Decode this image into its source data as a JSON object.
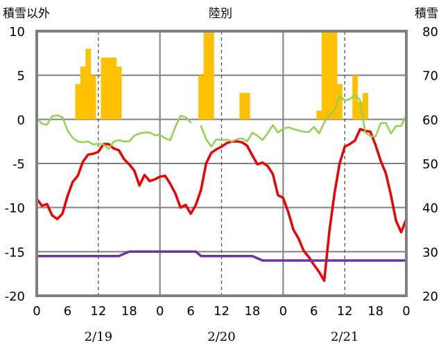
{
  "chart_data": {
    "type": "bar+line",
    "title": "陸別",
    "left_axis_label": "積雪以外",
    "right_axis_label": "積雪",
    "left_ylim": [
      -20,
      10
    ],
    "left_yticks": [
      "10",
      "5",
      "0",
      "-5",
      "-10",
      "-15",
      "-20"
    ],
    "right_ylim": [
      20,
      80
    ],
    "right_yticks": [
      "80",
      "70",
      "60",
      "50",
      "40",
      "30",
      "20"
    ],
    "x_tick_labels": [
      "0",
      "6",
      "12",
      "18",
      "0",
      "6",
      "12",
      "18",
      "0",
      "6",
      "12",
      "18",
      "0"
    ],
    "x_hours_total": 72,
    "dates": [
      "2/19",
      "2/20",
      "2/21"
    ],
    "grid": "dashed vertical at 12h, solid vertical at day boundaries, solid horizontal at 0/5/-5/-10/-15",
    "colors": {
      "bars": "#ffc000",
      "red": "#ee0000",
      "green": "#92d050",
      "purple": "#7030a0",
      "frame": "#808080"
    },
    "series": [
      {
        "kind": "bar",
        "values": [
          {
            "x": 8,
            "y": 4
          },
          {
            "x": 9,
            "y": 6
          },
          {
            "x": 10,
            "y": 8
          },
          {
            "x": 11,
            "y": 5
          },
          {
            "x": 13,
            "y": 7
          },
          {
            "x": 14,
            "y": 7
          },
          {
            "x": 15,
            "y": 7
          },
          {
            "x": 16,
            "y": 6
          },
          {
            "x": 32,
            "y": 5
          },
          {
            "x": 33,
            "y": 10
          },
          {
            "x": 34,
            "y": 10
          },
          {
            "x": 40,
            "y": 3
          },
          {
            "x": 41,
            "y": 3
          },
          {
            "x": 55,
            "y": 1
          },
          {
            "x": 56,
            "y": 10
          },
          {
            "x": 57,
            "y": 10
          },
          {
            "x": 58,
            "y": 10
          },
          {
            "x": 59,
            "y": 4
          },
          {
            "x": 62,
            "y": 5
          },
          {
            "x": 63,
            "y": 2
          },
          {
            "x": 64,
            "y": 3
          }
        ]
      },
      {
        "kind": "line",
        "axis": "left",
        "values": [
          [
            0,
            -9
          ],
          [
            1,
            -9.8
          ],
          [
            2,
            -9.6
          ],
          [
            3,
            -10.9
          ],
          [
            4,
            -11.3
          ],
          [
            5,
            -10.7
          ],
          [
            6,
            -8.7
          ],
          [
            7,
            -7.1
          ],
          [
            8,
            -6.4
          ],
          [
            9,
            -4.8
          ],
          [
            10,
            -4
          ],
          [
            11,
            -3.9
          ],
          [
            12,
            -3.7
          ],
          [
            13,
            -2.8
          ],
          [
            14,
            -2.8
          ],
          [
            15,
            -3.3
          ],
          [
            16,
            -3.5
          ],
          [
            17,
            -4.5
          ],
          [
            18,
            -5.1
          ],
          [
            19,
            -5.8
          ],
          [
            20,
            -7.5
          ],
          [
            21,
            -6.3
          ],
          [
            22,
            -7
          ],
          [
            23,
            -6.8
          ],
          [
            24,
            -6.5
          ],
          [
            25,
            -6.4
          ],
          [
            26,
            -7.3
          ],
          [
            27,
            -8.4
          ],
          [
            28,
            -10
          ],
          [
            29,
            -9.7
          ],
          [
            30,
            -10.7
          ],
          [
            31,
            -9.7
          ],
          [
            32,
            -8
          ],
          [
            33,
            -5
          ],
          [
            34,
            -3.8
          ],
          [
            35,
            -3.4
          ],
          [
            36,
            -3.1
          ],
          [
            37,
            -2.7
          ],
          [
            38,
            -2.5
          ],
          [
            39,
            -2.5
          ],
          [
            40,
            -2.6
          ],
          [
            41,
            -3
          ],
          [
            42,
            -4.1
          ],
          [
            43,
            -5.1
          ],
          [
            44,
            -4.9
          ],
          [
            45,
            -5.3
          ],
          [
            46,
            -6.2
          ],
          [
            47,
            -8.6
          ],
          [
            48,
            -8.9
          ],
          [
            49,
            -10.5
          ],
          [
            50,
            -12.5
          ],
          [
            51,
            -13.5
          ],
          [
            52,
            -14.9
          ],
          [
            53,
            -15.6
          ],
          [
            54,
            -16.5
          ],
          [
            55,
            -17.3
          ],
          [
            56,
            -18.3
          ],
          [
            57,
            -12.7
          ],
          [
            58,
            -8.4
          ],
          [
            59,
            -5
          ],
          [
            60,
            -3.1
          ],
          [
            61,
            -2.8
          ],
          [
            62,
            -2.4
          ],
          [
            63,
            -1.1
          ],
          [
            64,
            -1.3
          ],
          [
            65,
            -1.4
          ],
          [
            66,
            -2.9
          ],
          [
            67,
            -4.7
          ],
          [
            68,
            -6.1
          ],
          [
            69,
            -8.6
          ],
          [
            70,
            -11.5
          ],
          [
            71,
            -12.8
          ],
          [
            72,
            -11.3
          ]
        ]
      },
      {
        "kind": "line",
        "axis": "right",
        "values": [
          [
            0,
            60.3
          ],
          [
            1,
            59
          ],
          [
            2,
            58.8
          ],
          [
            3,
            60.7
          ],
          [
            4,
            60.9
          ],
          [
            5,
            60.5
          ],
          [
            6,
            57.5
          ],
          [
            7,
            55.8
          ],
          [
            8,
            55
          ],
          [
            9,
            54.8
          ],
          [
            10,
            55
          ],
          [
            11,
            54.3
          ],
          [
            12,
            54.5
          ],
          [
            13,
            54.3
          ],
          [
            14,
            53.3
          ],
          [
            15,
            55
          ],
          [
            16,
            55.3
          ],
          [
            17,
            55
          ],
          [
            18,
            55
          ],
          [
            19,
            56.3
          ],
          [
            20,
            56.8
          ],
          [
            21,
            57
          ],
          [
            22,
            57
          ],
          [
            23,
            56.4
          ],
          [
            24,
            56.5
          ],
          [
            25,
            55.7
          ],
          [
            26,
            55.3
          ],
          [
            27,
            58.3
          ],
          [
            28,
            60.8
          ],
          [
            29,
            60.5
          ],
          [
            30,
            59.3
          ],
          [
            null,
            null
          ],
          [
            32,
            58.5
          ],
          [
            33,
            55.5
          ],
          [
            34,
            53.8
          ],
          [
            35,
            55.5
          ],
          [
            36,
            55.3
          ],
          [
            37,
            55.4
          ],
          [
            38,
            55
          ],
          [
            39,
            55.5
          ],
          [
            40,
            55.7
          ],
          [
            41,
            55
          ],
          [
            42,
            57
          ],
          [
            43,
            56.3
          ],
          [
            44,
            55.3
          ],
          [
            45,
            56.9
          ],
          [
            46,
            58.7
          ],
          [
            47,
            57
          ],
          [
            48,
            57.9
          ],
          [
            49,
            58.2
          ],
          [
            50,
            57.8
          ],
          [
            51,
            57.5
          ],
          [
            52,
            57.2
          ],
          [
            53,
            57.1
          ],
          [
            54,
            58.3
          ],
          [
            55,
            56.8
          ],
          [
            56,
            59.3
          ],
          [
            57,
            61
          ],
          [
            58,
            62
          ],
          [
            59,
            65.3
          ],
          [
            60,
            64.3
          ],
          [
            61,
            64.6
          ],
          [
            62,
            65.5
          ],
          [
            63,
            64.3
          ],
          [
            64,
            57
          ],
          [
            65,
            56.2
          ],
          [
            66,
            56.1
          ],
          [
            67,
            59.1
          ],
          [
            68,
            59.2
          ],
          [
            69,
            56.8
          ],
          [
            70,
            58.5
          ],
          [
            71,
            58.5
          ],
          [
            72,
            61
          ]
        ]
      },
      {
        "kind": "line",
        "axis": "right",
        "values": [
          [
            0,
            29
          ],
          [
            16,
            29
          ],
          [
            18,
            30
          ],
          [
            24,
            30
          ],
          [
            26,
            30
          ],
          [
            28,
            30
          ],
          [
            31,
            30
          ],
          [
            32,
            29
          ],
          [
            42,
            29
          ],
          [
            44,
            28
          ],
          [
            53,
            28
          ],
          [
            54,
            28
          ],
          [
            56,
            28
          ],
          [
            60,
            28
          ],
          [
            66,
            28
          ],
          [
            72,
            28
          ]
        ]
      }
    ]
  }
}
